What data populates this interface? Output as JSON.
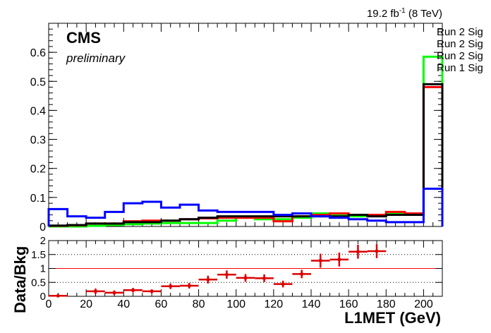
{
  "header": {
    "experiment": "CMS",
    "status": "preliminary",
    "lumi_value": "19.2 fb",
    "lumi_exponent": "-1",
    "lumi_energy": " (8 TeV)"
  },
  "legend": {
    "entries": [
      "Run 2 Sig",
      "Run 2 Sig",
      "Run 2 Sig",
      "Run 1 Sig"
    ]
  },
  "chart_data": [
    {
      "type": "line",
      "title": "",
      "xlabel": "L1MET (GeV)",
      "ylabel": "",
      "xlim": [
        0,
        210
      ],
      "ylim": [
        0,
        0.7
      ],
      "bin_edges": [
        0,
        10,
        20,
        30,
        40,
        50,
        60,
        70,
        80,
        90,
        100,
        110,
        120,
        130,
        140,
        150,
        160,
        170,
        180,
        190,
        200,
        210
      ],
      "xticks": [
        0,
        20,
        40,
        60,
        80,
        100,
        120,
        140,
        160,
        180,
        200
      ],
      "yticks": [
        0,
        0.1,
        0.2,
        0.3,
        0.4,
        0.5,
        0.6
      ],
      "ytick_labels": [
        "0",
        "0.1",
        "0.2",
        "0.3",
        "0.4",
        "0.5",
        "0.6"
      ],
      "series": [
        {
          "name": "Run 2 Sig",
          "color": "#00ff00",
          "values": [
            0.0,
            0.0,
            0.002,
            0.005,
            0.008,
            0.01,
            0.012,
            0.012,
            0.012,
            0.02,
            0.03,
            0.025,
            0.025,
            0.03,
            0.045,
            0.04,
            0.035,
            0.04,
            0.045,
            0.04,
            0.585
          ]
        },
        {
          "name": "Run 2 Sig",
          "color": "#ff0000",
          "values": [
            0.002,
            0.004,
            0.01,
            0.01,
            0.018,
            0.02,
            0.02,
            0.025,
            0.028,
            0.03,
            0.03,
            0.03,
            0.018,
            0.035,
            0.04,
            0.045,
            0.04,
            0.04,
            0.05,
            0.045,
            0.48
          ]
        },
        {
          "name": "Run 2 Sig",
          "color": "#000000",
          "values": [
            0.003,
            0.005,
            0.01,
            0.01,
            0.015,
            0.015,
            0.02,
            0.025,
            0.03,
            0.035,
            0.035,
            0.035,
            0.035,
            0.035,
            0.035,
            0.035,
            0.04,
            0.035,
            0.04,
            0.04,
            0.49
          ]
        },
        {
          "name": "Run 1 Sig",
          "color": "#0000ff",
          "values": [
            0.06,
            0.035,
            0.03,
            0.05,
            0.08,
            0.085,
            0.065,
            0.075,
            0.055,
            0.05,
            0.05,
            0.05,
            0.04,
            0.045,
            0.035,
            0.03,
            0.025,
            0.02,
            0.015,
            0.015,
            0.13
          ]
        }
      ]
    },
    {
      "type": "scatter",
      "title": "",
      "xlabel": "L1MET (GeV)",
      "ylabel": "Data/Bkg",
      "xlim": [
        0,
        210
      ],
      "ylim": [
        0,
        2
      ],
      "xticks": [
        0,
        20,
        40,
        60,
        80,
        100,
        120,
        140,
        160,
        180,
        200
      ],
      "yticks": [
        0,
        0.5,
        1,
        1.5,
        2
      ],
      "ytick_labels": [
        "0",
        "0.5",
        "1",
        "1.5",
        "2"
      ],
      "reference_lines": [
        {
          "value": 1,
          "color": "#ff0000",
          "style": "solid"
        },
        {
          "value": 0.5,
          "color": "#000000",
          "style": "dotted"
        },
        {
          "value": 1.5,
          "color": "#000000",
          "style": "dotted"
        }
      ],
      "series": [
        {
          "name": "",
          "color": "#dd0000",
          "points": [
            {
              "x": 5,
              "y": 0.02,
              "yerr": 0.03
            },
            {
              "x": 25,
              "y": 0.18,
              "yerr": 0.1
            },
            {
              "x": 35,
              "y": 0.13,
              "yerr": 0.08
            },
            {
              "x": 45,
              "y": 0.22,
              "yerr": 0.08
            },
            {
              "x": 55,
              "y": 0.18,
              "yerr": 0.07
            },
            {
              "x": 65,
              "y": 0.36,
              "yerr": 0.1
            },
            {
              "x": 75,
              "y": 0.38,
              "yerr": 0.1
            },
            {
              "x": 85,
              "y": 0.6,
              "yerr": 0.14
            },
            {
              "x": 95,
              "y": 0.78,
              "yerr": 0.15
            },
            {
              "x": 105,
              "y": 0.66,
              "yerr": 0.14
            },
            {
              "x": 115,
              "y": 0.65,
              "yerr": 0.14
            },
            {
              "x": 125,
              "y": 0.44,
              "yerr": 0.12
            },
            {
              "x": 135,
              "y": 0.8,
              "yerr": 0.15
            },
            {
              "x": 145,
              "y": 1.28,
              "yerr": 0.25
            },
            {
              "x": 155,
              "y": 1.32,
              "yerr": 0.25
            },
            {
              "x": 165,
              "y": 1.6,
              "yerr": 0.25
            },
            {
              "x": 175,
              "y": 1.62,
              "yerr": 0.25
            }
          ]
        }
      ]
    }
  ]
}
